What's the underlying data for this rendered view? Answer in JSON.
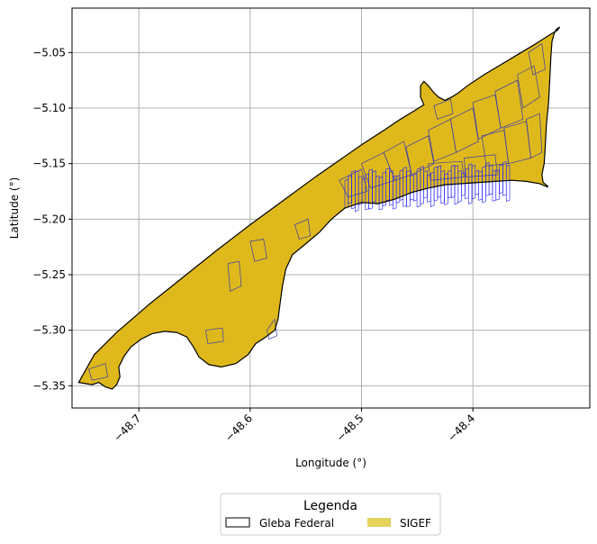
{
  "chart_data": {
    "type": "map",
    "xlabel": "Longitude (°)",
    "ylabel": "Latitude (°)",
    "xlim": [
      -48.76,
      -48.295
    ],
    "ylim": [
      -5.37,
      -5.01
    ],
    "xticks": [
      -48.7,
      -48.6,
      -48.5,
      -48.4
    ],
    "xtick_labels": [
      "−48.7",
      "−48.6",
      "−48.5",
      "−48.4"
    ],
    "yticks": [
      -5.05,
      -5.1,
      -5.15,
      -5.2,
      -5.25,
      -5.3,
      -5.35
    ],
    "ytick_labels": [
      "−5.05",
      "−5.10",
      "−5.15",
      "−5.20",
      "−5.25",
      "−5.30",
      "−5.35"
    ],
    "grid": true,
    "legend": {
      "title": "Legenda",
      "placement": "bottom-center",
      "entries": [
        {
          "label": "Gleba Federal",
          "style": "outline",
          "color": "#000000"
        },
        {
          "label": "SIGEF",
          "style": "fill",
          "color": "#E5D35C"
        }
      ]
    },
    "colors": {
      "fill": "#DFB91C",
      "outline": "#000000",
      "parcels": "#3a3aa8",
      "parcels_dense": "#1a1aff",
      "grid": "#b0b0b0"
    },
    "boundary": [
      [
        -48.754,
        -5.347
      ],
      [
        -48.742,
        -5.349
      ],
      [
        -48.736,
        -5.347
      ],
      [
        -48.73,
        -5.351
      ],
      [
        -48.724,
        -5.353
      ],
      [
        -48.72,
        -5.349
      ],
      [
        -48.717,
        -5.342
      ],
      [
        -48.718,
        -5.333
      ],
      [
        -48.713,
        -5.323
      ],
      [
        -48.707,
        -5.315
      ],
      [
        -48.698,
        -5.308
      ],
      [
        -48.688,
        -5.303
      ],
      [
        -48.677,
        -5.301
      ],
      [
        -48.666,
        -5.302
      ],
      [
        -48.657,
        -5.306
      ],
      [
        -48.651,
        -5.315
      ],
      [
        -48.646,
        -5.324
      ],
      [
        -48.637,
        -5.331
      ],
      [
        -48.626,
        -5.333
      ],
      [
        -48.613,
        -5.33
      ],
      [
        -48.602,
        -5.322
      ],
      [
        -48.595,
        -5.312
      ],
      [
        -48.586,
        -5.306
      ],
      [
        -48.578,
        -5.3
      ],
      [
        -48.575,
        -5.29
      ],
      [
        -48.573,
        -5.275
      ],
      [
        -48.571,
        -5.26
      ],
      [
        -48.568,
        -5.245
      ],
      [
        -48.562,
        -5.232
      ],
      [
        -48.55,
        -5.222
      ],
      [
        -48.538,
        -5.212
      ],
      [
        -48.527,
        -5.2
      ],
      [
        -48.515,
        -5.19
      ],
      [
        -48.5,
        -5.185
      ],
      [
        -48.485,
        -5.186
      ],
      [
        -48.47,
        -5.182
      ],
      [
        -48.455,
        -5.176
      ],
      [
        -48.44,
        -5.172
      ],
      [
        -48.425,
        -5.169
      ],
      [
        -48.41,
        -5.168
      ],
      [
        -48.395,
        -5.167
      ],
      [
        -48.38,
        -5.166
      ],
      [
        -48.365,
        -5.165
      ],
      [
        -48.352,
        -5.166
      ],
      [
        -48.34,
        -5.168
      ],
      [
        -48.333,
        -5.171
      ],
      [
        -48.333,
        -5.17
      ],
      [
        -48.337,
        -5.167
      ],
      [
        -48.338,
        -5.16
      ],
      [
        -48.336,
        -5.15
      ],
      [
        -48.335,
        -5.135
      ],
      [
        -48.334,
        -5.115
      ],
      [
        -48.332,
        -5.095
      ],
      [
        -48.331,
        -5.075
      ],
      [
        -48.33,
        -5.055
      ],
      [
        -48.329,
        -5.04
      ],
      [
        -48.327,
        -5.033
      ],
      [
        -48.325,
        -5.029
      ],
      [
        -48.322,
        -5.027
      ],
      [
        -48.324,
        -5.03
      ],
      [
        -48.331,
        -5.034
      ],
      [
        -48.345,
        -5.043
      ],
      [
        -48.36,
        -5.052
      ],
      [
        -48.375,
        -5.061
      ],
      [
        -48.39,
        -5.07
      ],
      [
        -48.405,
        -5.08
      ],
      [
        -48.414,
        -5.087
      ],
      [
        -48.419,
        -5.09
      ],
      [
        -48.425,
        -5.093
      ],
      [
        -48.431,
        -5.09
      ],
      [
        -48.436,
        -5.085
      ],
      [
        -48.44,
        -5.08
      ],
      [
        -48.444,
        -5.076
      ],
      [
        -48.447,
        -5.08
      ],
      [
        -48.447,
        -5.09
      ],
      [
        -48.444,
        -5.097
      ],
      [
        -48.452,
        -5.102
      ],
      [
        -48.465,
        -5.11
      ],
      [
        -48.48,
        -5.12
      ],
      [
        -48.5,
        -5.133
      ],
      [
        -48.52,
        -5.147
      ],
      [
        -48.54,
        -5.161
      ],
      [
        -48.57,
        -5.183
      ],
      [
        -48.6,
        -5.205
      ],
      [
        -48.63,
        -5.228
      ],
      [
        -48.66,
        -5.252
      ],
      [
        -48.69,
        -5.276
      ],
      [
        -48.72,
        -5.302
      ],
      [
        -48.74,
        -5.322
      ],
      [
        -48.754,
        -5.347
      ]
    ],
    "parcels": [
      [
        [
          -48.46,
          -5.135
        ],
        [
          -48.44,
          -5.125
        ],
        [
          -48.435,
          -5.15
        ],
        [
          -48.455,
          -5.16
        ]
      ],
      [
        [
          -48.44,
          -5.12
        ],
        [
          -48.42,
          -5.11
        ],
        [
          -48.415,
          -5.14
        ],
        [
          -48.435,
          -5.148
        ]
      ],
      [
        [
          -48.42,
          -5.11
        ],
        [
          -48.4,
          -5.1
        ],
        [
          -48.395,
          -5.13
        ],
        [
          -48.415,
          -5.14
        ]
      ],
      [
        [
          -48.4,
          -5.095
        ],
        [
          -48.38,
          -5.088
        ],
        [
          -48.375,
          -5.118
        ],
        [
          -48.395,
          -5.128
        ]
      ],
      [
        [
          -48.38,
          -5.085
        ],
        [
          -48.36,
          -5.075
        ],
        [
          -48.355,
          -5.11
        ],
        [
          -48.375,
          -5.118
        ]
      ],
      [
        [
          -48.36,
          -5.07
        ],
        [
          -48.345,
          -5.062
        ],
        [
          -48.34,
          -5.09
        ],
        [
          -48.355,
          -5.1
        ]
      ],
      [
        [
          -48.392,
          -5.125
        ],
        [
          -48.372,
          -5.12
        ],
        [
          -48.368,
          -5.15
        ],
        [
          -48.388,
          -5.152
        ]
      ],
      [
        [
          -48.372,
          -5.118
        ],
        [
          -48.352,
          -5.112
        ],
        [
          -48.348,
          -5.145
        ],
        [
          -48.368,
          -5.15
        ]
      ],
      [
        [
          -48.352,
          -5.11
        ],
        [
          -48.34,
          -5.105
        ],
        [
          -48.338,
          -5.14
        ],
        [
          -48.348,
          -5.145
        ]
      ],
      [
        [
          -48.5,
          -5.15
        ],
        [
          -48.48,
          -5.14
        ],
        [
          -48.47,
          -5.165
        ],
        [
          -48.492,
          -5.172
        ]
      ],
      [
        [
          -48.48,
          -5.14
        ],
        [
          -48.462,
          -5.13
        ],
        [
          -48.455,
          -5.16
        ],
        [
          -48.47,
          -5.165
        ]
      ],
      [
        [
          -48.52,
          -5.165
        ],
        [
          -48.5,
          -5.155
        ],
        [
          -48.495,
          -5.175
        ],
        [
          -48.512,
          -5.18
        ]
      ],
      [
        [
          -48.44,
          -5.15
        ],
        [
          -48.41,
          -5.148
        ],
        [
          -48.408,
          -5.162
        ],
        [
          -48.438,
          -5.165
        ]
      ],
      [
        [
          -48.408,
          -5.145
        ],
        [
          -48.38,
          -5.142
        ],
        [
          -48.378,
          -5.16
        ],
        [
          -48.406,
          -5.162
        ]
      ],
      [
        [
          -48.35,
          -5.05
        ],
        [
          -48.338,
          -5.042
        ],
        [
          -48.335,
          -5.065
        ],
        [
          -48.346,
          -5.07
        ]
      ],
      [
        [
          -48.435,
          -5.098
        ],
        [
          -48.42,
          -5.092
        ],
        [
          -48.418,
          -5.105
        ],
        [
          -48.432,
          -5.11
        ]
      ],
      [
        [
          -48.62,
          -5.24
        ],
        [
          -48.61,
          -5.238
        ],
        [
          -48.608,
          -5.26
        ],
        [
          -48.618,
          -5.265
        ]
      ],
      [
        [
          -48.6,
          -5.22
        ],
        [
          -48.588,
          -5.218
        ],
        [
          -48.585,
          -5.235
        ],
        [
          -48.596,
          -5.238
        ]
      ],
      [
        [
          -48.56,
          -5.205
        ],
        [
          -48.548,
          -5.2
        ],
        [
          -48.546,
          -5.215
        ],
        [
          -48.556,
          -5.218
        ]
      ],
      [
        [
          -48.64,
          -5.3
        ],
        [
          -48.625,
          -5.298
        ],
        [
          -48.624,
          -5.31
        ],
        [
          -48.638,
          -5.312
        ]
      ],
      [
        [
          -48.745,
          -5.335
        ],
        [
          -48.73,
          -5.33
        ],
        [
          -48.728,
          -5.342
        ],
        [
          -48.742,
          -5.345
        ]
      ],
      [
        [
          -48.585,
          -5.3
        ],
        [
          -48.578,
          -5.29
        ],
        [
          -48.576,
          -5.305
        ],
        [
          -48.583,
          -5.308
        ]
      ]
    ],
    "dense_band": {
      "lon": [
        -48.515,
        -48.37
      ],
      "lat": [
        -5.19,
        -5.16
      ],
      "count": 48
    }
  }
}
